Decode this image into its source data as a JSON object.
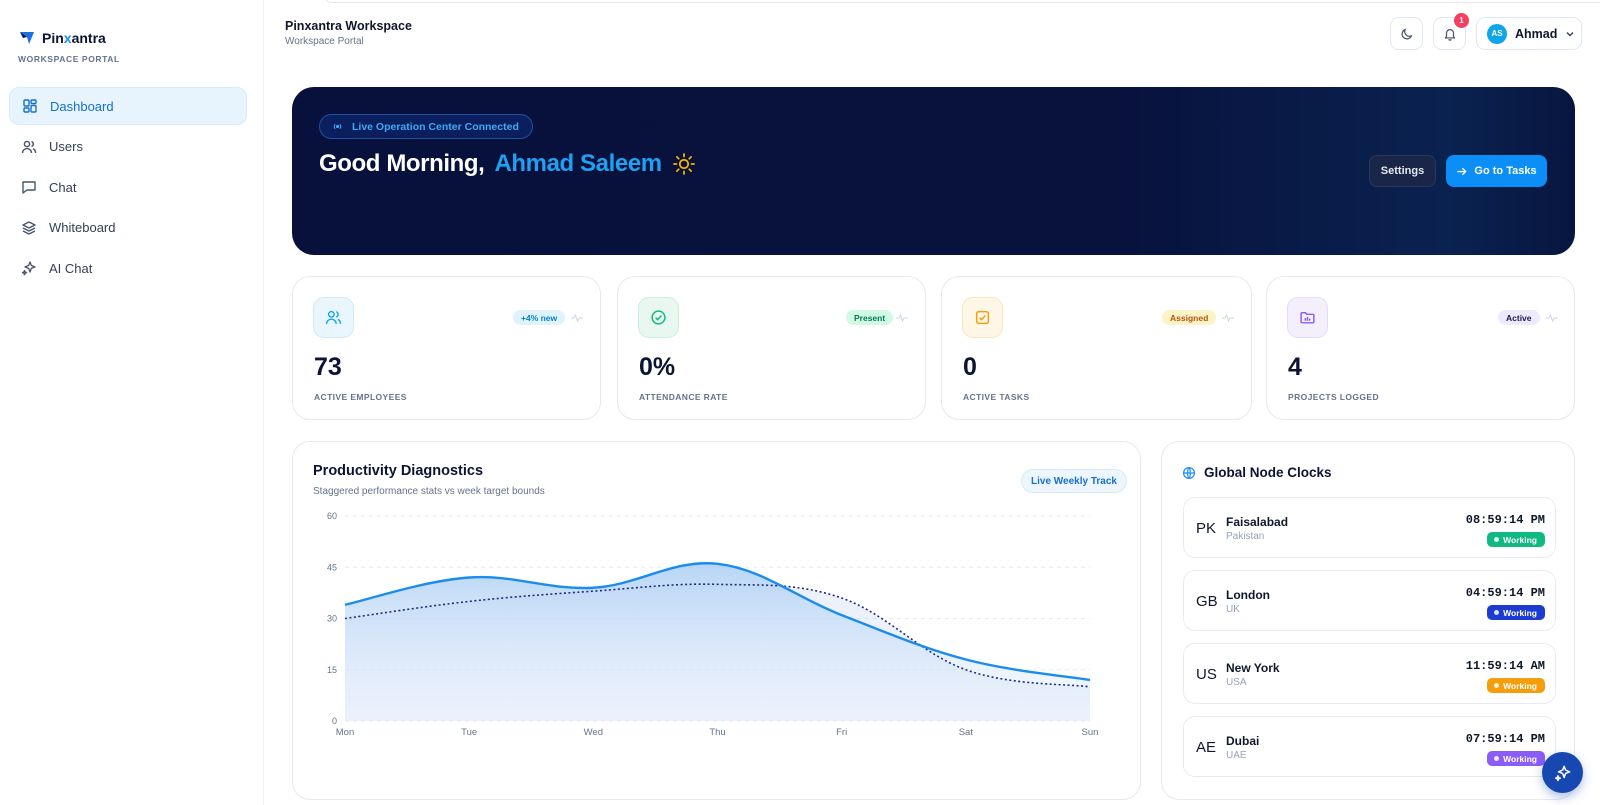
{
  "sidebar": {
    "brand_pre": "Pin",
    "brand_x": "x",
    "brand_post": "antra",
    "brand_sub": "WORKSPACE PORTAL",
    "items": [
      {
        "label": "Dashboard",
        "icon": "dashboard-grid-icon"
      },
      {
        "label": "Users",
        "icon": "users-icon"
      },
      {
        "label": "Chat",
        "icon": "chat-bubble-icon"
      },
      {
        "label": "Whiteboard",
        "icon": "layers-icon"
      },
      {
        "label": "AI Chat",
        "icon": "sparkles-icon"
      }
    ]
  },
  "header": {
    "title": "Pinxantra Workspace",
    "subtitle": "Workspace Portal",
    "notification_count": "1",
    "user_initials": "AS",
    "user_name": "Ahmad"
  },
  "hero": {
    "pill": "Live Operation Center Connected",
    "greeting": "Good Morning,",
    "name": "Ahmad Saleem",
    "settings_label": "Settings",
    "tasks_label": "Go to Tasks"
  },
  "stats": [
    {
      "value": "73",
      "label": "ACTIVE EMPLOYEES",
      "tag": "+4% new",
      "color": "#0ea5e9"
    },
    {
      "value": "0%",
      "label": "ATTENDANCE RATE",
      "tag": "Present",
      "color": "#10b981"
    },
    {
      "value": "0",
      "label": "ACTIVE TASKS",
      "tag": "Assigned",
      "color": "#f59e0b"
    },
    {
      "value": "4",
      "label": "PROJECTS LOGGED",
      "tag": "Active",
      "color": "#8b5cf6"
    }
  ],
  "productivity": {
    "title": "Productivity Diagnostics",
    "subtitle": "Staggered performance stats vs week target bounds",
    "pill": "Live Weekly Track"
  },
  "chart_data": {
    "type": "area",
    "categories": [
      "Mon",
      "Tue",
      "Wed",
      "Thu",
      "Fri",
      "Sat",
      "Sun"
    ],
    "y_ticks": [
      "0",
      "15",
      "30",
      "45",
      "60"
    ],
    "ylim": [
      0,
      60
    ],
    "grid": true,
    "series": [
      {
        "values": [
          34,
          42,
          39,
          46,
          31,
          18,
          12
        ],
        "color": "#1a8cf0",
        "style": "solid-area"
      },
      {
        "values": [
          30,
          35,
          38,
          40,
          36,
          15,
          10
        ],
        "color": "#1e2a8a",
        "style": "dotted"
      }
    ]
  },
  "clocks": {
    "title": "Global Node Clocks",
    "rows": [
      {
        "cc": "PK",
        "city": "Faisalabad",
        "country": "Pakistan",
        "time": "08:59:14 PM",
        "status": "Working",
        "color": "#10b981"
      },
      {
        "cc": "GB",
        "city": "London",
        "country": "UK",
        "time": "04:59:14 PM",
        "status": "Working",
        "color": "#1d3bd1"
      },
      {
        "cc": "US",
        "city": "New York",
        "country": "USA",
        "time": "11:59:14 AM",
        "status": "Working",
        "color": "#f59e0b"
      },
      {
        "cc": "AE",
        "city": "Dubai",
        "country": "UAE",
        "time": "07:59:14 PM",
        "status": "Working",
        "color": "#8b5cf6"
      }
    ]
  }
}
